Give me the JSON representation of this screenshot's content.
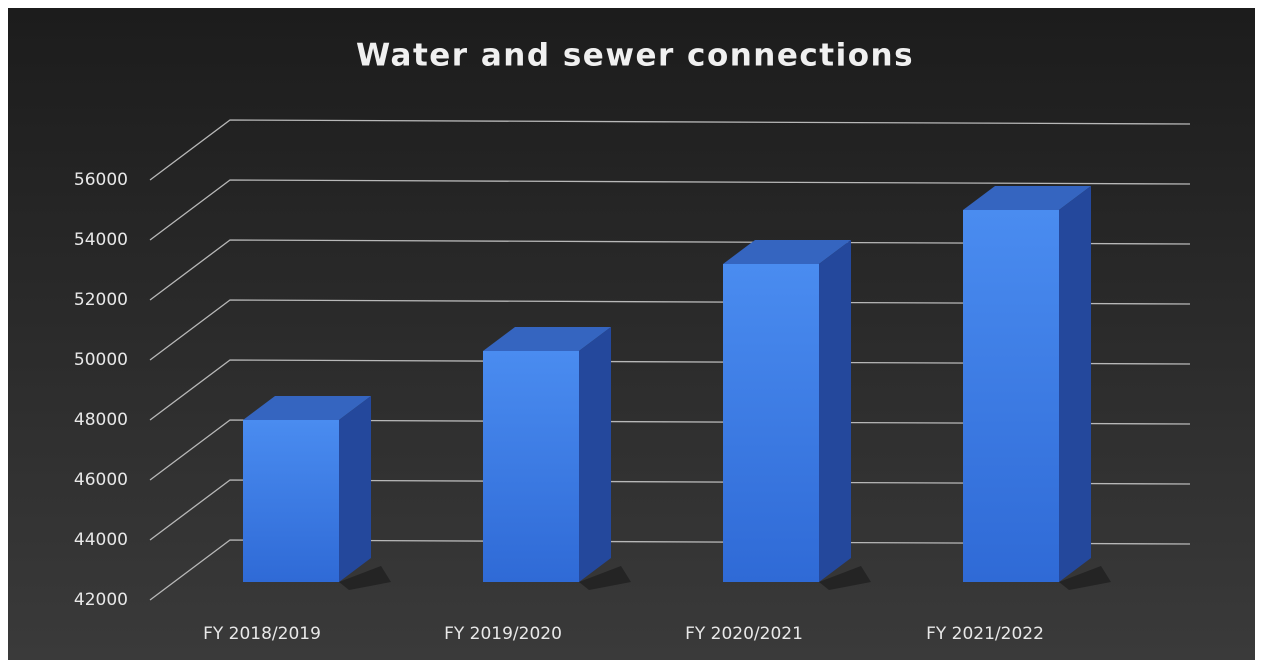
{
  "chart_data": {
    "type": "bar3d",
    "title": "Water and sewer connections",
    "categories": [
      "FY 2018/2019",
      "FY 2019/2020",
      "FY 2020/2021",
      "FY 2021/2022"
    ],
    "values": [
      47400,
      49700,
      52600,
      54400
    ],
    "color": "#3b7ae0",
    "ylim": [
      42000,
      56000
    ],
    "yticks": [
      42000,
      44000,
      46000,
      48000,
      50000,
      52000,
      54000,
      56000
    ],
    "grid": true
  }
}
